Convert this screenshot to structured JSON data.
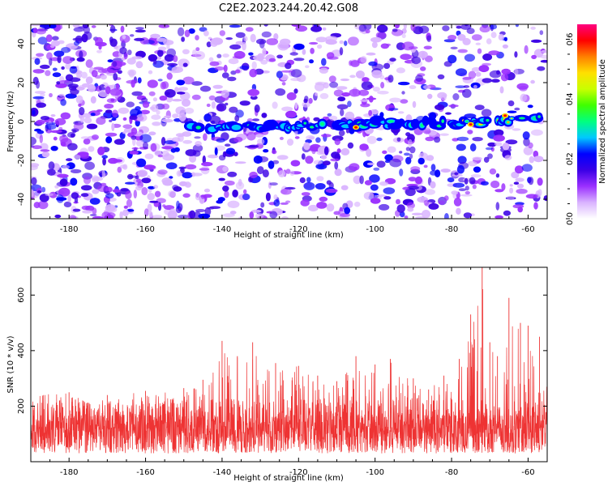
{
  "figure": {
    "title": "C2E2.2023.244.20.42.G08"
  },
  "chart_data": [
    {
      "type": "heatmap",
      "title": "C2E2.2023.244.20.42.G08",
      "xlabel": "Height of straight line (km)",
      "ylabel": "Frequency (Hz)",
      "xlim": [
        -190,
        -55
      ],
      "ylim": [
        -50,
        50
      ],
      "xticks": [
        -180,
        -160,
        -140,
        -120,
        -100,
        -80,
        -60
      ],
      "yticks": [
        -40,
        -20,
        0,
        20,
        40
      ],
      "colorbar": {
        "label": "Normalized spectral amplitude",
        "range": [
          0,
          0.65
        ],
        "ticks": [
          0.0,
          0.2,
          0.4,
          0.6
        ],
        "colormap": [
          "#ffffff",
          "#d9b3ff",
          "#9b30ff",
          "#3a00e6",
          "#0000ff",
          "#00c8ff",
          "#00ff80",
          "#3fff00",
          "#c8ff00",
          "#ffe000",
          "#ff8000",
          "#ff0000",
          "#ff0080"
        ]
      },
      "signal_band": {
        "frequency_center_hz": [
          [
            -148,
            -3
          ],
          [
            -140,
            -3
          ],
          [
            -130,
            -3
          ],
          [
            -120,
            -2
          ],
          [
            -110,
            -2
          ],
          [
            -100,
            -1
          ],
          [
            -90,
            -1
          ],
          [
            -80,
            -1
          ],
          [
            -70,
            0
          ],
          [
            -60,
            1
          ],
          [
            -57,
            2
          ]
        ],
        "x_range": [
          -148,
          -57
        ],
        "peak_amplitude": 0.6
      }
    },
    {
      "type": "line",
      "xlabel": "Height of straight line (km)",
      "ylabel": "SNR (10 * v/v)",
      "xlim": [
        -190,
        -55
      ],
      "ylim": [
        0,
        700
      ],
      "xticks": [
        -180,
        -160,
        -140,
        -120,
        -100,
        -80,
        -60
      ],
      "yticks": [
        200,
        400,
        600
      ],
      "series": [
        {
          "color": "#ee3333",
          "envelope_max": [
            [
              -190,
              240
            ],
            [
              -180,
              250
            ],
            [
              -170,
              240
            ],
            [
              -160,
              255
            ],
            [
              -150,
              265
            ],
            [
              -145,
              295
            ],
            [
              -140,
              435
            ],
            [
              -136,
              380
            ],
            [
              -132,
              430
            ],
            [
              -126,
              355
            ],
            [
              -120,
              345
            ],
            [
              -115,
              310
            ],
            [
              -110,
              290
            ],
            [
              -105,
              380
            ],
            [
              -100,
              350
            ],
            [
              -96,
              370
            ],
            [
              -90,
              300
            ],
            [
              -86,
              260
            ],
            [
              -82,
              310
            ],
            [
              -78,
              370
            ],
            [
              -75,
              530
            ],
            [
              -72,
              700
            ],
            [
              -70,
              430
            ],
            [
              -68,
              380
            ],
            [
              -65,
              590
            ],
            [
              -62,
              500
            ],
            [
              -60,
              490
            ],
            [
              -57,
              450
            ],
            [
              -55,
              330
            ]
          ],
          "baseline_range": [
            30,
            170
          ]
        }
      ]
    }
  ]
}
